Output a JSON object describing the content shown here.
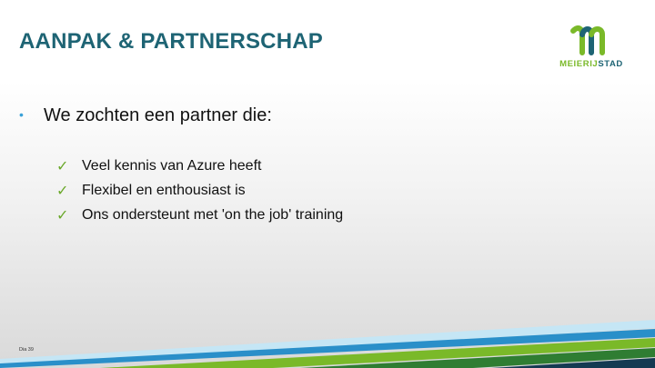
{
  "slide": {
    "title": "AANPAK & PARTNERSCHAP",
    "logo": {
      "part1": "MEIERIJ",
      "part2": "STAD"
    },
    "bullet": {
      "marker": "•",
      "text": "We zochten een partner die:"
    },
    "checklist": [
      {
        "icon": "✓",
        "text": "Veel kennis van Azure heeft"
      },
      {
        "icon": "✓",
        "text": "Flexibel en enthousiast is"
      },
      {
        "icon": "✓",
        "text": "Ons ondersteunt met 'on the job' training"
      }
    ],
    "slide_number": "Dia 39",
    "colors": {
      "title": "#1e6474",
      "bullet": "#3aa1d8",
      "check": "#6aa82a",
      "logo_green": "#7ab929",
      "logo_teal": "#1e6474",
      "band_light_blue": "#c5e6f5",
      "band_blue": "#2a8fc9",
      "band_green": "#7ab929",
      "band_dark_green": "#2f7d32",
      "band_navy": "#143a52"
    }
  }
}
